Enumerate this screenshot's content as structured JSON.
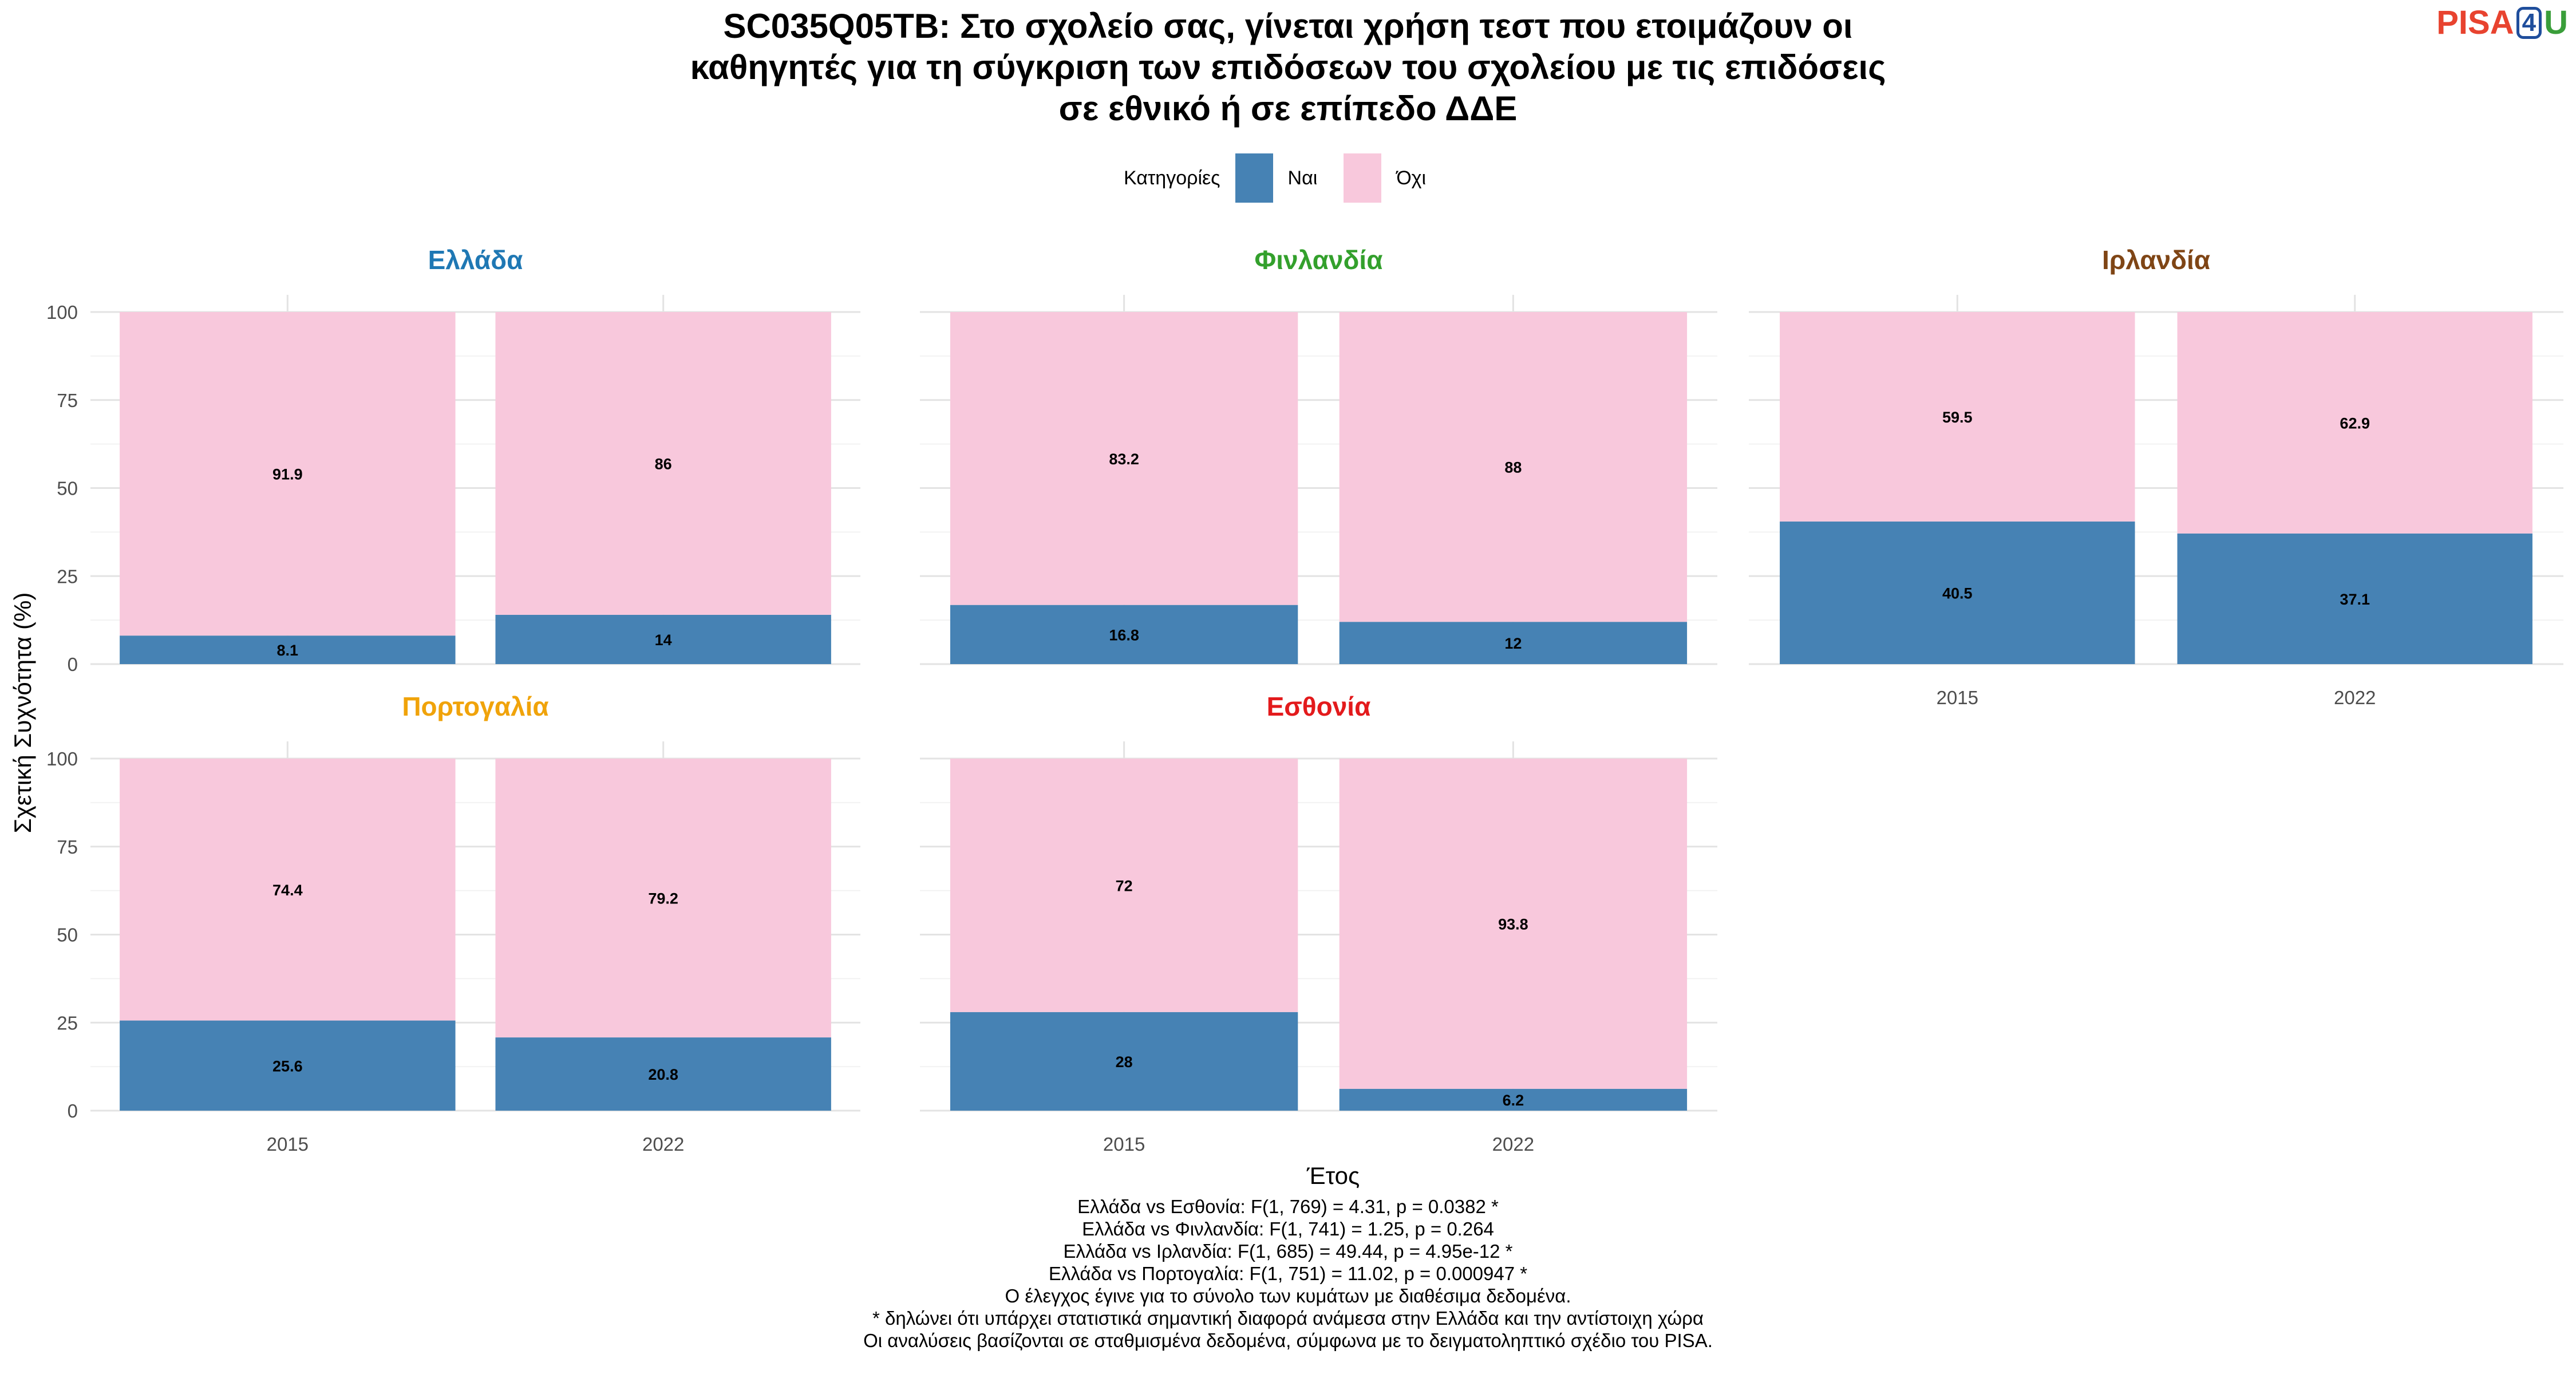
{
  "title_lines": [
    "SC035Q05TB: Στο σχολείο σας, γίνεται χρήση τεστ που ετοιμάζουν οι",
    "καθηγητές για τη σύγκριση των επιδόσεων του σχολείου με τις επιδόσεις",
    "σε εθνικό ή σε επίπεδο ΔΔΕ"
  ],
  "logo": {
    "pisa": "PISA",
    "four": "4",
    "u": "U"
  },
  "legend": {
    "title": "Κατηγορίες",
    "items": [
      {
        "label": "Ναι",
        "color": "#4682b4"
      },
      {
        "label": "Όχι",
        "color": "#f8c8dc"
      }
    ]
  },
  "chart_data": {
    "type": "bar",
    "stacked": true,
    "xlabel": "Έτος",
    "ylabel": "Σχετική Συχνότητα (%)",
    "ylim": [
      0,
      100
    ],
    "yticks": [
      0,
      25,
      50,
      75,
      100
    ],
    "categories": [
      "2015",
      "2022"
    ],
    "grid": true,
    "legend_position": "top",
    "panels": [
      {
        "name": "Ελλάδα",
        "color": "#1f78b4",
        "series": [
          {
            "name": "Ναι",
            "values": [
              8.1,
              14
            ]
          },
          {
            "name": "Όχι",
            "values": [
              91.9,
              86
            ]
          }
        ]
      },
      {
        "name": "Φινλανδία",
        "color": "#33a02c",
        "series": [
          {
            "name": "Ναι",
            "values": [
              16.8,
              12
            ]
          },
          {
            "name": "Όχι",
            "values": [
              83.2,
              88
            ]
          }
        ]
      },
      {
        "name": "Ιρλανδία",
        "color": "#7f4515",
        "series": [
          {
            "name": "Ναι",
            "values": [
              40.5,
              37.1
            ]
          },
          {
            "name": "Όχι",
            "values": [
              59.5,
              62.9
            ]
          }
        ]
      },
      {
        "name": "Πορτογαλία",
        "color": "#f0a30a",
        "series": [
          {
            "name": "Ναι",
            "values": [
              25.6,
              20.8
            ]
          },
          {
            "name": "Όχι",
            "values": [
              74.4,
              79.2
            ]
          }
        ]
      },
      {
        "name": "Εσθονία",
        "color": "#e31a1c",
        "series": [
          {
            "name": "Ναι",
            "values": [
              28,
              6.2
            ]
          },
          {
            "name": "Όχι",
            "values": [
              72,
              93.8
            ]
          }
        ]
      }
    ]
  },
  "notes": [
    "Ελλάδα vs Εσθονία: F(1, 769) = 4.31, p = 0.0382 *",
    "Ελλάδα vs Φινλανδία: F(1, 741) = 1.25, p = 0.264",
    "Ελλάδα vs Ιρλανδία: F(1, 685) = 49.44, p = 4.95e-12 *",
    "Ελλάδα vs Πορτογαλία: F(1, 751) = 11.02, p = 0.000947 *",
    "Ο έλεγχος έγινε για το σύνολο των κυμάτων με διαθέσιμα δεδομένα.",
    "* δηλώνει ότι υπάρχει στατιστικά σημαντική διαφορά ανάμεσα στην Ελλάδα και την αντίστοιχη χώρα",
    "Οι αναλύσεις βασίζονται σε σταθμισμένα δεδομένα, σύμφωνα με το δειγματοληπτικό σχέδιο του PISA."
  ]
}
